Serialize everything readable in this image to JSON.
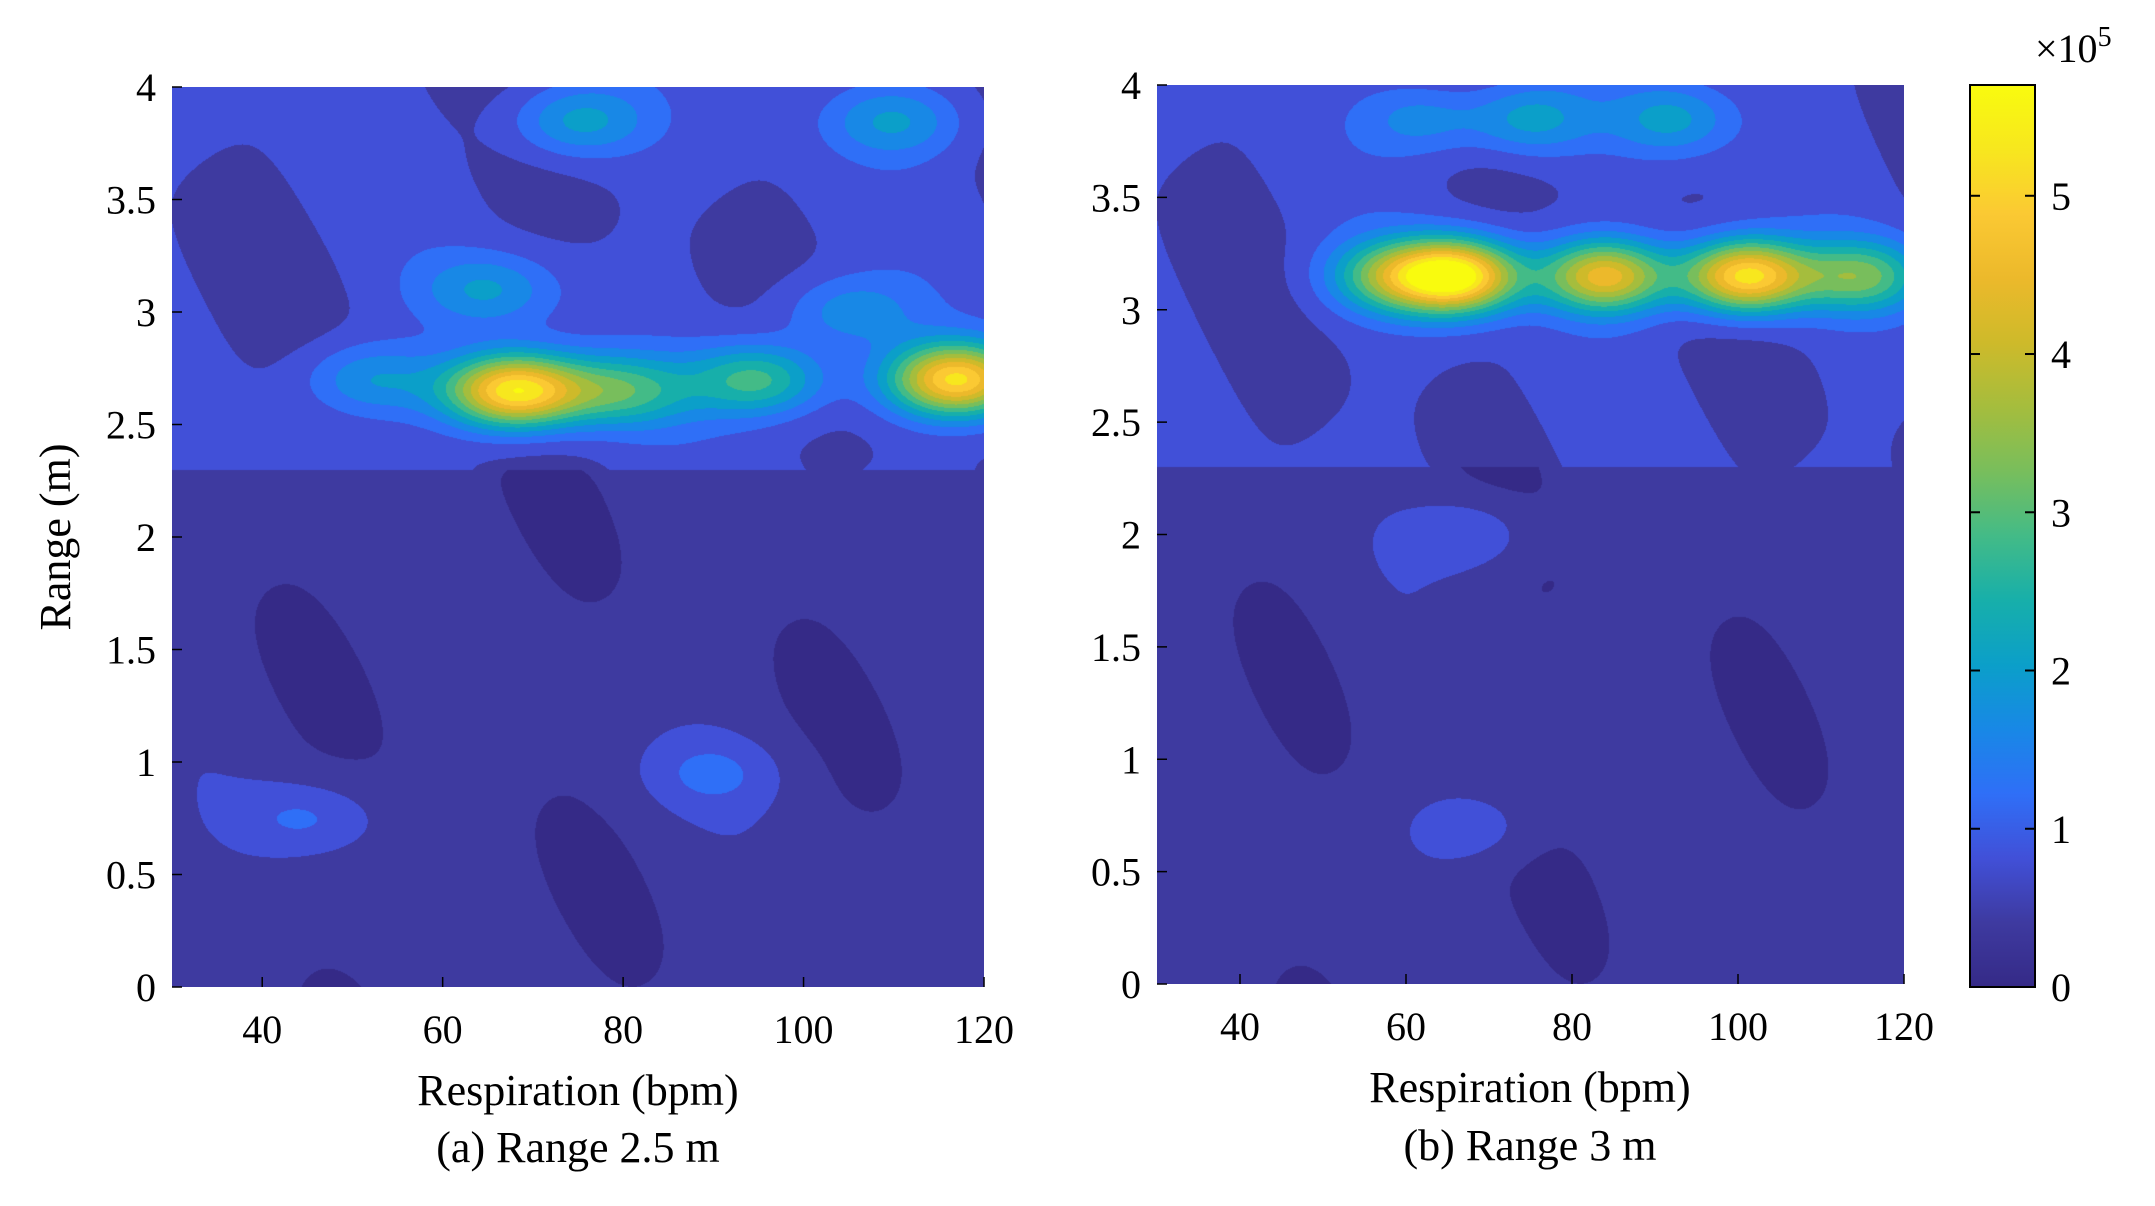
{
  "chart_data": [
    {
      "type": "heatmap",
      "caption": "(a) Range 2.5 m",
      "xlabel": "Respiration (bpm)",
      "ylabel": "Range (m)",
      "xlim": [
        30,
        120
      ],
      "ylim": [
        0,
        4
      ],
      "xticks": [
        40,
        60,
        80,
        100,
        120
      ],
      "yticks": [
        0,
        0.5,
        1,
        1.5,
        2,
        2.5,
        3,
        3.5,
        4
      ],
      "ytick_labels": [
        "0",
        "0.5",
        "1",
        "1.5",
        "2",
        "2.5",
        "3",
        "3.5",
        "4"
      ],
      "colormap": "parula",
      "background_level": 0.4,
      "hotspots": [
        {
          "x": 68,
          "y": 2.65,
          "value": 4.8
        },
        {
          "x": 117,
          "y": 2.7,
          "value": 4.5
        },
        {
          "x": 95,
          "y": 2.7,
          "value": 2.2
        },
        {
          "x": 80,
          "y": 2.65,
          "value": 2.0
        },
        {
          "x": 52,
          "y": 2.7,
          "value": 1.2
        },
        {
          "x": 75,
          "y": 3.85,
          "value": 1.4
        },
        {
          "x": 110,
          "y": 3.85,
          "value": 1.2
        },
        {
          "x": 65,
          "y": 3.1,
          "value": 1.2
        },
        {
          "x": 105,
          "y": 3.0,
          "value": 1.1
        },
        {
          "x": 45,
          "y": 0.75,
          "value": 0.7
        },
        {
          "x": 90,
          "y": 0.95,
          "value": 0.6
        }
      ]
    },
    {
      "type": "heatmap",
      "caption": "(b) Range 3 m",
      "xlabel": "Respiration (bpm)",
      "ylabel": "",
      "xlim": [
        30,
        120
      ],
      "ylim": [
        0,
        4
      ],
      "xticks": [
        40,
        60,
        80,
        100,
        120
      ],
      "yticks": [
        0,
        0.5,
        1,
        1.5,
        2,
        2.5,
        3,
        3.5,
        4
      ],
      "ytick_labels": [
        "0",
        "0.5",
        "1",
        "1.5",
        "2",
        "2.5",
        "3",
        "3.5",
        "4"
      ],
      "colormap": "parula",
      "background_level": 0.4,
      "hotspots": [
        {
          "x": 66,
          "y": 3.15,
          "value": 5.0
        },
        {
          "x": 101,
          "y": 3.15,
          "value": 4.7
        },
        {
          "x": 84,
          "y": 3.15,
          "value": 3.8
        },
        {
          "x": 115,
          "y": 3.15,
          "value": 2.4
        },
        {
          "x": 58,
          "y": 3.15,
          "value": 2.2
        },
        {
          "x": 75,
          "y": 3.85,
          "value": 1.4
        },
        {
          "x": 92,
          "y": 3.85,
          "value": 1.3
        },
        {
          "x": 62,
          "y": 3.85,
          "value": 1.0
        },
        {
          "x": 68,
          "y": 2.0,
          "value": 0.7
        },
        {
          "x": 68,
          "y": 0.7,
          "value": 0.6
        }
      ]
    }
  ],
  "colorbar": {
    "min": 0,
    "max": 5.7,
    "ticks": [
      0,
      1,
      2,
      3,
      4,
      5
    ],
    "tick_labels": [
      "0",
      "1",
      "2",
      "3",
      "4",
      "5"
    ],
    "multiplier_base": "×10",
    "multiplier_exponent": "5"
  },
  "colors": {
    "parula": [
      "#352a87",
      "#3e3aa0",
      "#4150d8",
      "#2f6ff7",
      "#1888e6",
      "#0b9fc9",
      "#17afaa",
      "#43bb87",
      "#78be5c",
      "#a5bd3d",
      "#ceba2a",
      "#ecb92b",
      "#fbc933",
      "#f7e71e",
      "#f9fb0e"
    ]
  }
}
